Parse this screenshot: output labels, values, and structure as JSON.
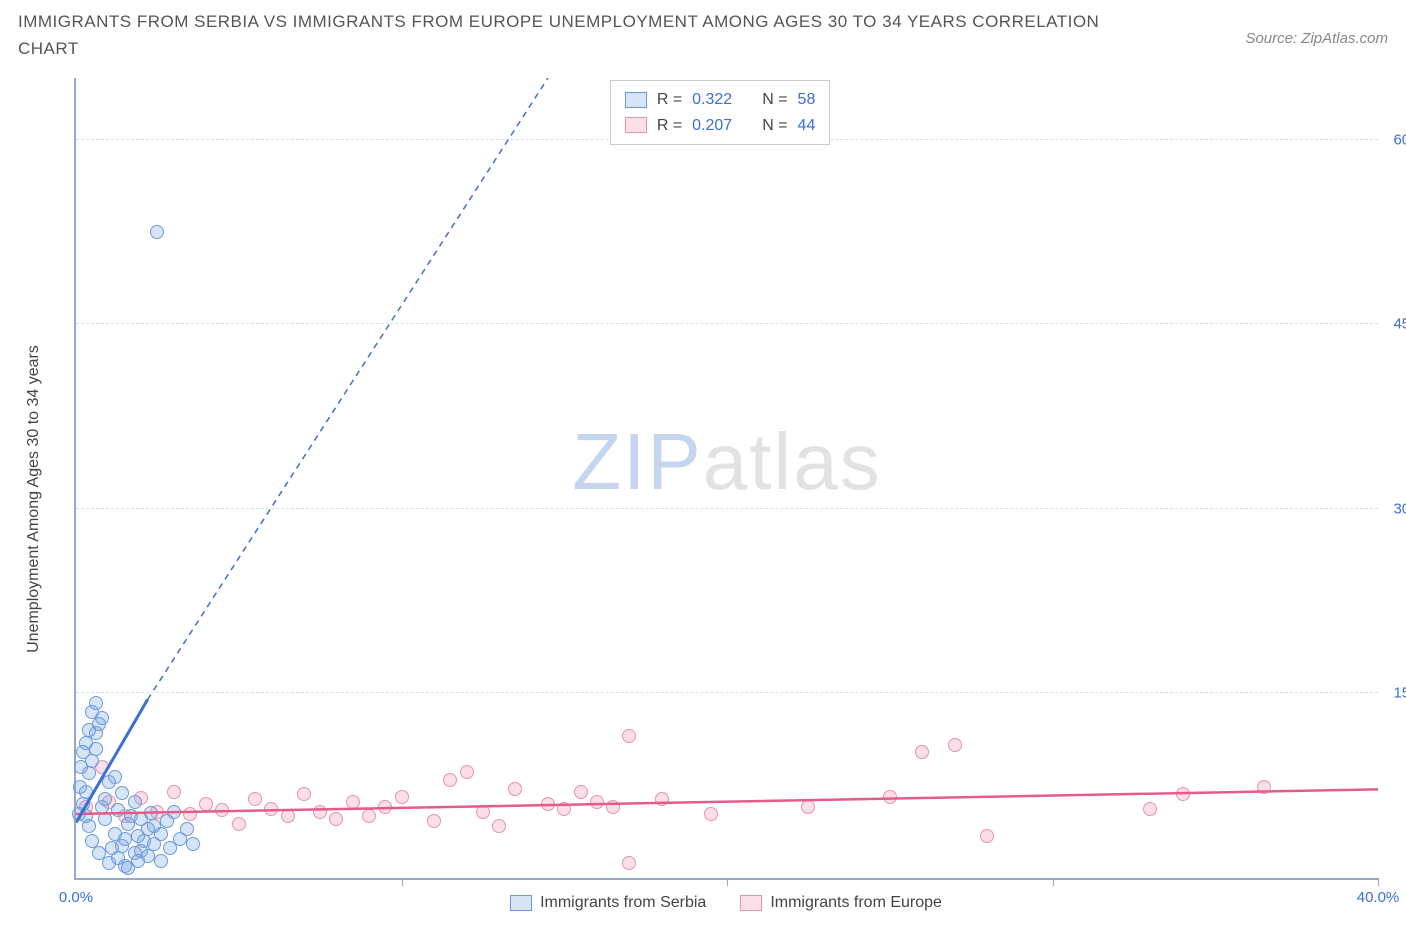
{
  "title": "IMMIGRANTS FROM SERBIA VS IMMIGRANTS FROM EUROPE UNEMPLOYMENT AMONG AGES 30 TO 34 YEARS CORRELATION CHART",
  "source": "Source: ZipAtlas.com",
  "y_axis_label": "Unemployment Among Ages 30 to 34 years",
  "watermark": {
    "part1": "ZIP",
    "part2": "atlas"
  },
  "chart": {
    "type": "scatter",
    "xlim": [
      0,
      40
    ],
    "ylim": [
      0,
      65
    ],
    "background": "#ffffff",
    "grid_color": "#d8dde6",
    "axis_color": "#96a8c8",
    "tick_label_color": "#3b6fd6",
    "xticks": [
      0,
      10,
      20,
      30,
      40
    ],
    "xtick_labels": [
      "0.0%",
      "",
      "",
      "",
      "40.0%"
    ],
    "yticks": [
      15,
      30,
      45,
      60
    ],
    "ytick_labels": [
      "15.0%",
      "30.0%",
      "45.0%",
      "60.0%"
    ],
    "marker_radius": 7
  },
  "series": {
    "serbia": {
      "label": "Immigrants from Serbia",
      "fill": "rgba(120,165,230,0.30)",
      "stroke": "#6f99d8",
      "trend_color": "#3b6fd6",
      "trend": {
        "x0": 0,
        "y0": 4.5,
        "x1": 2.2,
        "y1": 14.5,
        "x1_dash": 14.5,
        "y1_dash": 65
      },
      "R": "0.322",
      "N": "58",
      "points": [
        [
          0.1,
          5.2
        ],
        [
          0.2,
          6.0
        ],
        [
          0.3,
          7.0
        ],
        [
          0.3,
          5.0
        ],
        [
          0.4,
          8.5
        ],
        [
          0.4,
          4.2
        ],
        [
          0.5,
          9.5
        ],
        [
          0.5,
          3.0
        ],
        [
          0.6,
          10.5
        ],
        [
          0.6,
          11.8
        ],
        [
          0.7,
          12.5
        ],
        [
          0.7,
          2.0
        ],
        [
          0.8,
          13.0
        ],
        [
          0.8,
          5.8
        ],
        [
          0.9,
          6.4
        ],
        [
          0.9,
          4.8
        ],
        [
          1.0,
          7.8
        ],
        [
          1.0,
          1.2
        ],
        [
          1.1,
          2.4
        ],
        [
          1.2,
          3.6
        ],
        [
          1.2,
          8.2
        ],
        [
          1.3,
          5.5
        ],
        [
          1.3,
          1.6
        ],
        [
          1.4,
          2.6
        ],
        [
          1.4,
          6.9
        ],
        [
          1.5,
          3.2
        ],
        [
          1.5,
          1.0
        ],
        [
          1.6,
          4.4
        ],
        [
          1.6,
          0.8
        ],
        [
          1.7,
          5.0
        ],
        [
          1.8,
          2.0
        ],
        [
          1.8,
          6.2
        ],
        [
          1.9,
          3.4
        ],
        [
          1.9,
          1.4
        ],
        [
          2.0,
          4.8
        ],
        [
          2.0,
          2.2
        ],
        [
          2.1,
          3.0
        ],
        [
          2.2,
          4.0
        ],
        [
          2.2,
          1.8
        ],
        [
          2.3,
          5.3
        ],
        [
          2.4,
          2.8
        ],
        [
          2.4,
          4.2
        ],
        [
          2.6,
          3.6
        ],
        [
          2.6,
          1.4
        ],
        [
          2.8,
          4.6
        ],
        [
          2.9,
          2.4
        ],
        [
          3.0,
          5.4
        ],
        [
          3.2,
          3.2
        ],
        [
          3.4,
          4.0
        ],
        [
          3.6,
          2.8
        ],
        [
          0.4,
          12.0
        ],
        [
          0.5,
          13.5
        ],
        [
          0.6,
          14.2
        ],
        [
          0.3,
          11.0
        ],
        [
          0.2,
          10.2
        ],
        [
          0.15,
          9.0
        ],
        [
          0.12,
          7.4
        ],
        [
          2.5,
          52.5
        ]
      ]
    },
    "europe": {
      "label": "Immigrants from Europe",
      "fill": "rgba(240,150,175,0.30)",
      "stroke": "#e892ad",
      "trend_color": "#e65a8a",
      "trend": {
        "x0": 0,
        "y0": 5.2,
        "x1": 40,
        "y1": 7.2
      },
      "R": "0.207",
      "N": "44",
      "points": [
        [
          0.3,
          5.8
        ],
        [
          0.8,
          9.0
        ],
        [
          1.0,
          6.2
        ],
        [
          1.5,
          5.0
        ],
        [
          2.0,
          6.5
        ],
        [
          2.5,
          5.4
        ],
        [
          3.0,
          7.0
        ],
        [
          3.5,
          5.2
        ],
        [
          4.0,
          6.0
        ],
        [
          4.5,
          5.5
        ],
        [
          5.0,
          4.4
        ],
        [
          5.5,
          6.4
        ],
        [
          6.0,
          5.6
        ],
        [
          6.5,
          5.0
        ],
        [
          7.0,
          6.8
        ],
        [
          7.5,
          5.4
        ],
        [
          8.0,
          4.8
        ],
        [
          8.5,
          6.2
        ],
        [
          9.0,
          5.0
        ],
        [
          9.5,
          5.8
        ],
        [
          10.0,
          6.6
        ],
        [
          11.0,
          4.6
        ],
        [
          11.5,
          8.0
        ],
        [
          12.0,
          8.6
        ],
        [
          12.5,
          5.4
        ],
        [
          13.0,
          4.2
        ],
        [
          13.5,
          7.2
        ],
        [
          14.5,
          6.0
        ],
        [
          15.0,
          5.6
        ],
        [
          15.5,
          7.0
        ],
        [
          16.0,
          6.2
        ],
        [
          16.5,
          5.8
        ],
        [
          17.0,
          11.5
        ],
        [
          17.0,
          1.2
        ],
        [
          18.0,
          6.4
        ],
        [
          19.5,
          5.2
        ],
        [
          22.5,
          5.8
        ],
        [
          25.0,
          6.6
        ],
        [
          26.0,
          10.2
        ],
        [
          27.0,
          10.8
        ],
        [
          28.0,
          3.4
        ],
        [
          33.0,
          5.6
        ],
        [
          36.5,
          7.4
        ],
        [
          34.0,
          6.8
        ]
      ]
    }
  },
  "legend_top": {
    "rows": [
      {
        "swatch": "serbia",
        "r_label": "R =",
        "r_val": "0.322",
        "n_label": "N =",
        "n_val": "58"
      },
      {
        "swatch": "europe",
        "r_label": "R =",
        "r_val": "0.207",
        "n_label": "N =",
        "n_val": "44"
      }
    ]
  }
}
